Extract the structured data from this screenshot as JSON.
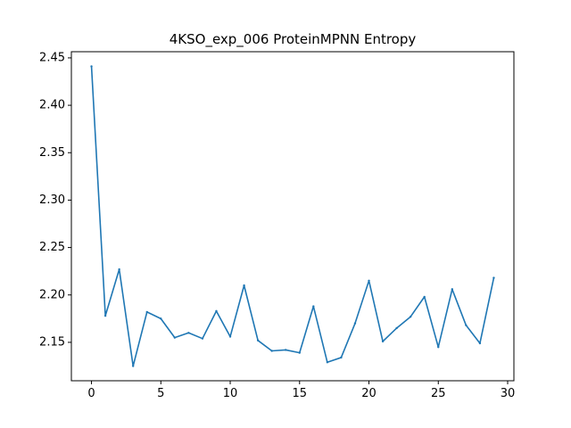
{
  "chart_data": {
    "type": "line",
    "title": "4KSO_exp_006 ProteinMPNN Entropy",
    "xlabel": "",
    "ylabel": "",
    "xlim": [
      -1.45,
      30.45
    ],
    "ylim": [
      2.1095,
      2.4565
    ],
    "xticks": [
      0,
      5,
      10,
      15,
      20,
      25,
      30
    ],
    "xtick_labels": [
      "0",
      "5",
      "10",
      "15",
      "20",
      "25",
      "30"
    ],
    "yticks": [
      2.15,
      2.2,
      2.25,
      2.3,
      2.35,
      2.4,
      2.45
    ],
    "ytick_labels": [
      "2.15",
      "2.20",
      "2.25",
      "2.30",
      "2.35",
      "2.40",
      "2.45"
    ],
    "grid": false,
    "series": [
      {
        "color": "#1f77b4",
        "x": [
          0,
          1,
          2,
          3,
          4,
          5,
          6,
          7,
          8,
          9,
          10,
          11,
          12,
          13,
          14,
          15,
          16,
          17,
          18,
          19,
          20,
          21,
          22,
          23,
          24,
          25,
          26,
          27,
          28,
          29
        ],
        "values": [
          2.441,
          2.178,
          2.227,
          2.125,
          2.182,
          2.175,
          2.155,
          2.16,
          2.154,
          2.183,
          2.156,
          2.21,
          2.152,
          2.141,
          2.142,
          2.139,
          2.188,
          2.129,
          2.134,
          2.17,
          2.215,
          2.151,
          2.165,
          2.177,
          2.198,
          2.145,
          2.206,
          2.168,
          2.149,
          2.218
        ]
      }
    ]
  }
}
